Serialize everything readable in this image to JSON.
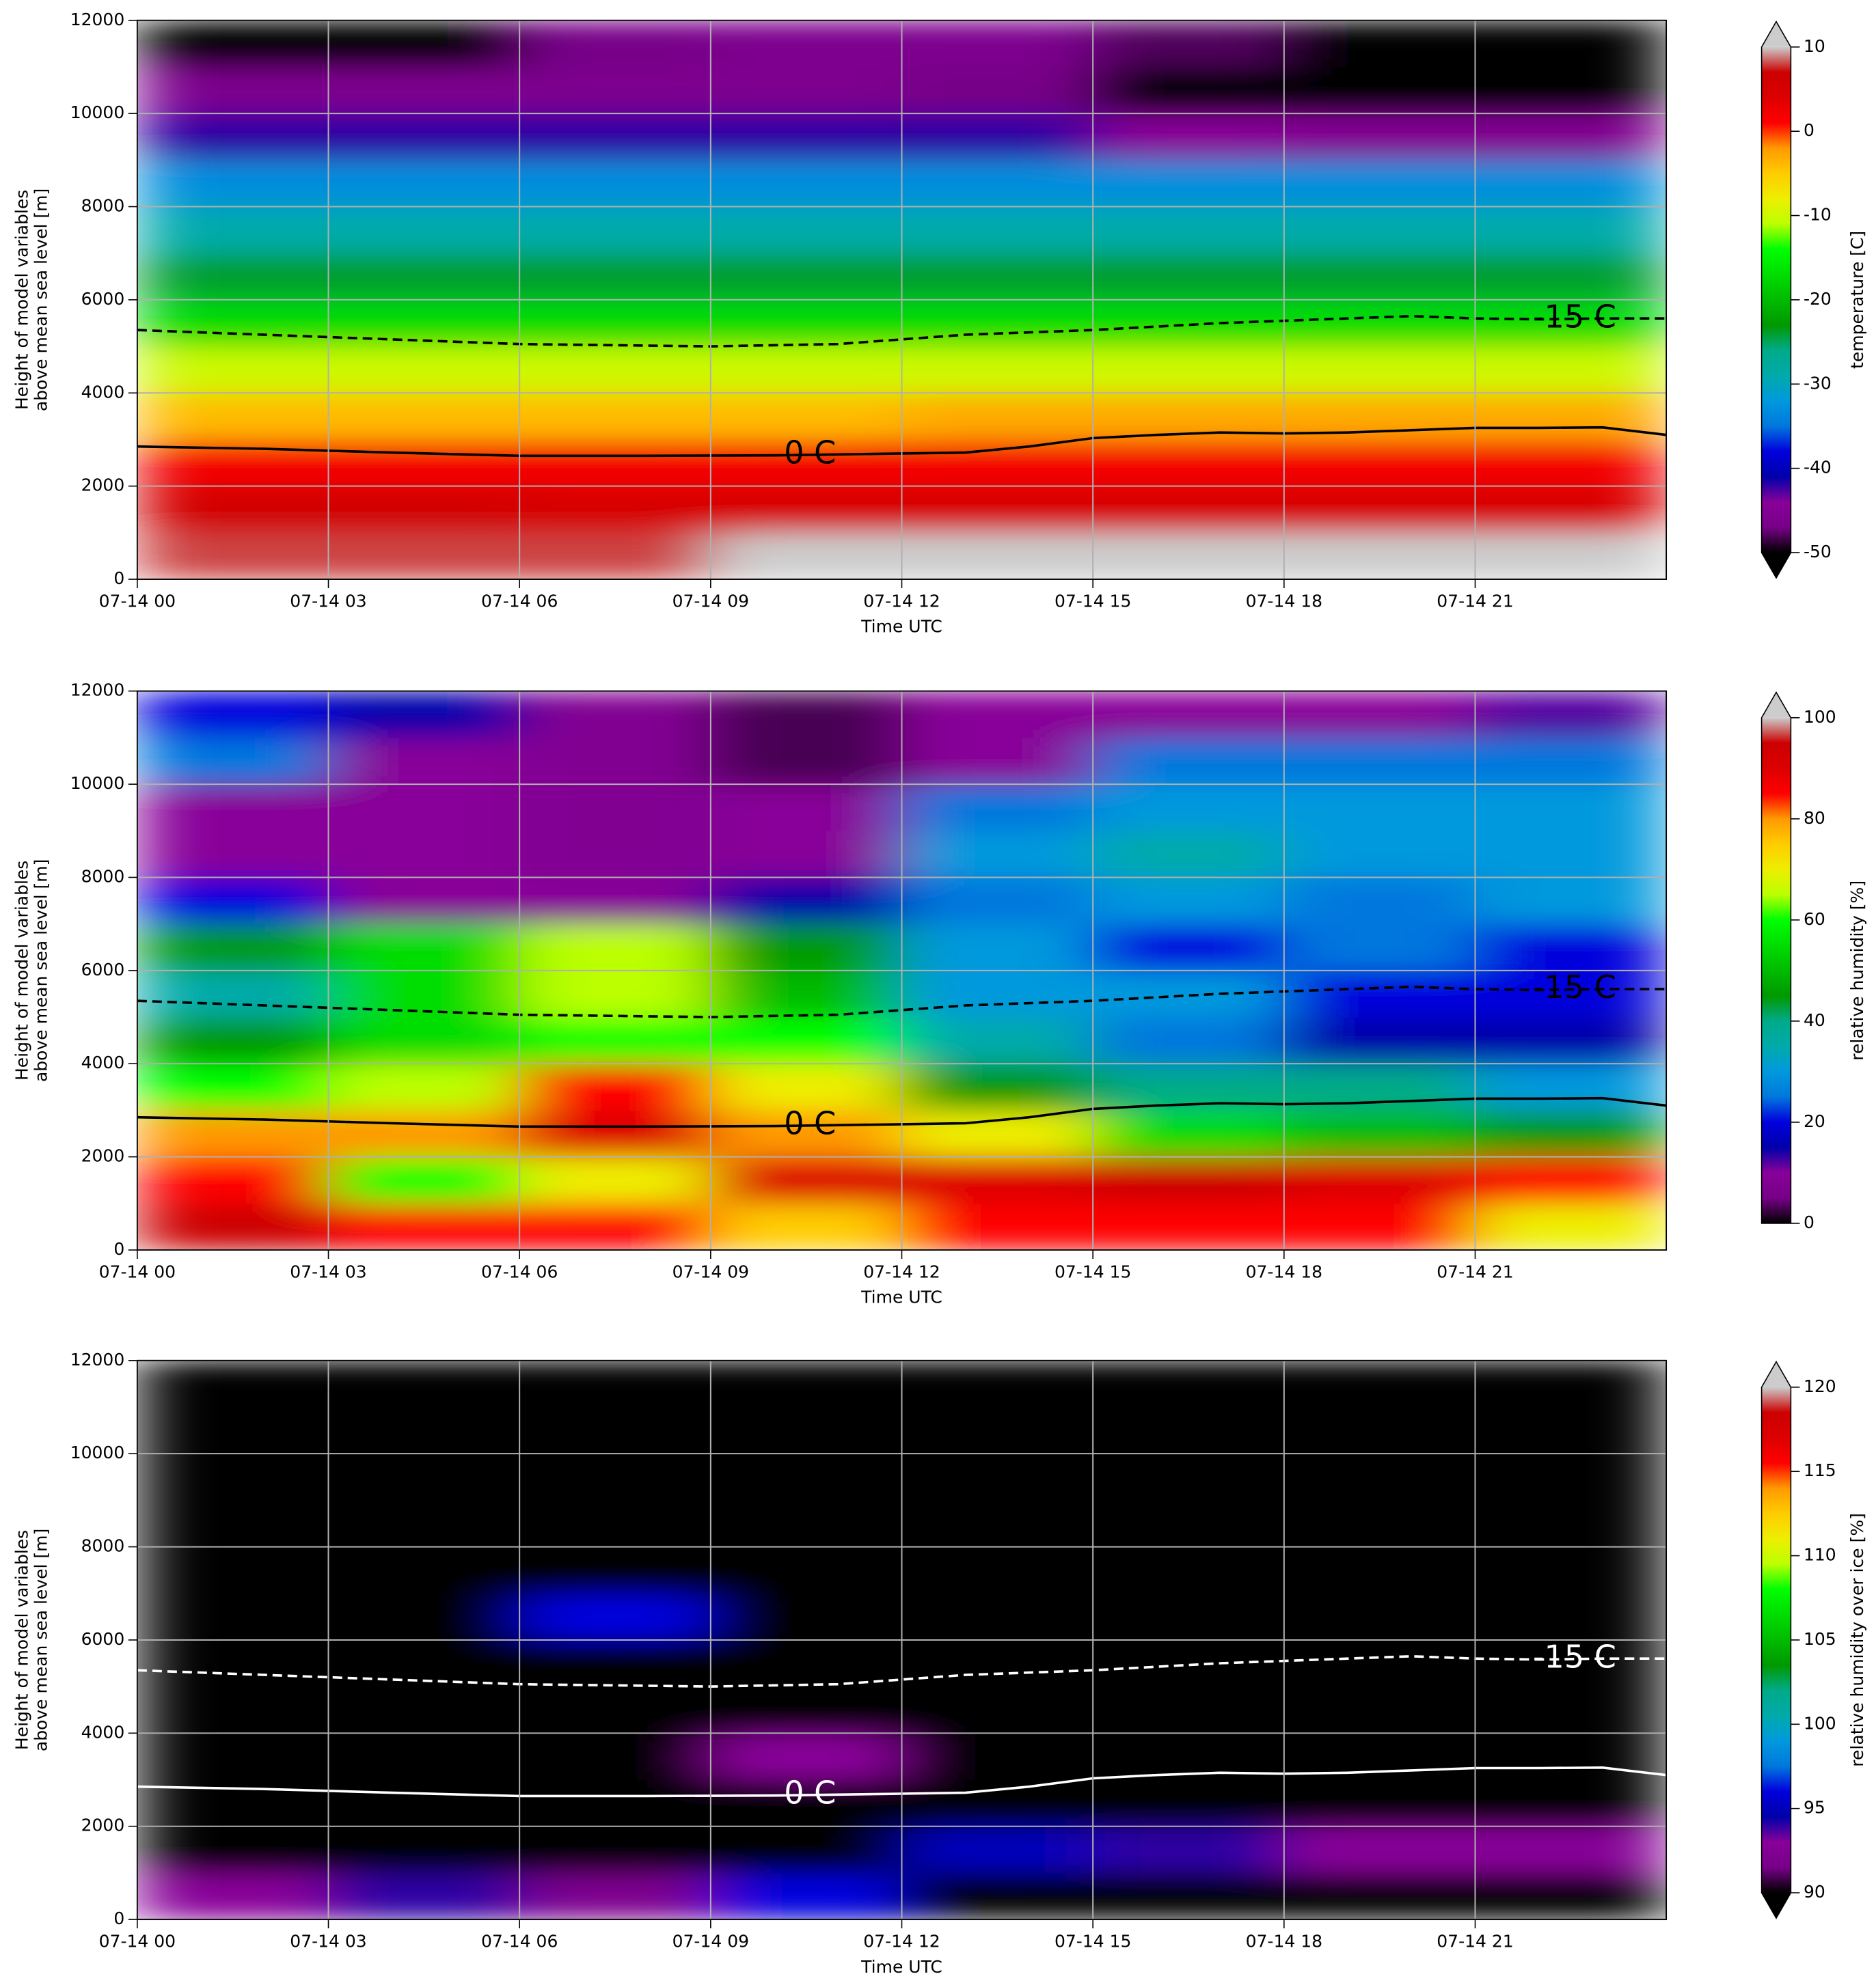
{
  "chart_data": [
    {
      "type": "heatmap",
      "ylabel": [
        "Height of model variables",
        "above mean sea level [m]"
      ],
      "xlabel": "Time UTC",
      "xlim": [
        0,
        24
      ],
      "xticks": [
        {
          "value": 0,
          "label": "07-14 00"
        },
        {
          "value": 3,
          "label": "07-14 03"
        },
        {
          "value": 6,
          "label": "07-14 06"
        },
        {
          "value": 9,
          "label": "07-14 09"
        },
        {
          "value": 12,
          "label": "07-14 12"
        },
        {
          "value": 15,
          "label": "07-14 15"
        },
        {
          "value": 18,
          "label": "07-14 18"
        },
        {
          "value": 21,
          "label": "07-14 21"
        }
      ],
      "ylim": [
        0,
        12000
      ],
      "yticks": [
        0,
        2000,
        4000,
        6000,
        8000,
        10000,
        12000
      ],
      "grid": true,
      "x": [
        1.5,
        4.5,
        7.5,
        10.5,
        13.5,
        16.5,
        19.5,
        22.5
      ],
      "y": [
        500,
        1500,
        2500,
        3500,
        4500,
        5500,
        6500,
        7500,
        8500,
        9500,
        10500,
        11500
      ],
      "z": [
        [
          8,
          8,
          8,
          10,
          12,
          12,
          12,
          12
        ],
        [
          6,
          6,
          5,
          5,
          5,
          5,
          5,
          5
        ],
        [
          2,
          2,
          2,
          2,
          2,
          2,
          2,
          2
        ],
        [
          -4,
          -4,
          -4,
          -4,
          -3,
          -3,
          -3,
          -3
        ],
        [
          -10,
          -10,
          -10,
          -10,
          -10,
          -10,
          -10,
          -10
        ],
        [
          -17,
          -17,
          -17,
          -17,
          -17,
          -17,
          -17,
          -17
        ],
        [
          -24,
          -24,
          -24,
          -24,
          -24,
          -24,
          -24,
          -24
        ],
        [
          -29,
          -29,
          -29,
          -29,
          -29,
          -29,
          -29,
          -29
        ],
        [
          -33,
          -33,
          -33,
          -33,
          -33,
          -33,
          -33,
          -33
        ],
        [
          -42,
          -42,
          -42,
          -42,
          -42,
          -44,
          -45,
          -45
        ],
        [
          -46,
          -46,
          -46,
          -46,
          -47,
          -50,
          -50,
          -50
        ],
        [
          -50,
          -50,
          -47,
          -46,
          -46,
          -48,
          -50,
          -50
        ]
      ],
      "colorbar": {
        "label": "temperature [C]",
        "lim": [
          -50,
          10
        ],
        "ticks": [
          -50,
          -40,
          -30,
          -20,
          -10,
          0,
          10
        ],
        "extend": "both",
        "cmap": [
          "#000000",
          "#770088",
          "#880099",
          "#0000aa",
          "#0000dd",
          "#0077dd",
          "#0099dd",
          "#00aaaa",
          "#00aa88",
          "#009900",
          "#00bb00",
          "#00dd00",
          "#00ff00",
          "#bbff00",
          "#eeee00",
          "#ffcc00",
          "#ff9900",
          "#ff0000",
          "#dd0000",
          "#cc0000",
          "#cccccc"
        ]
      },
      "contours": [
        {
          "label": "0 C",
          "style": "solid",
          "color": "#000000",
          "x": [
            0,
            2,
            4,
            6,
            8,
            10,
            12,
            13,
            14,
            15,
            16,
            17,
            18,
            19,
            20,
            21,
            22,
            23,
            24
          ],
          "y": [
            2850,
            2800,
            2720,
            2650,
            2650,
            2660,
            2700,
            2720,
            2850,
            3030,
            3100,
            3150,
            3130,
            3150,
            3200,
            3250,
            3250,
            3260,
            3100
          ]
        },
        {
          "label": "-15 C",
          "style": "dashed",
          "color": "#000000",
          "x": [
            0,
            3,
            6,
            9,
            11,
            13,
            15,
            17,
            19,
            20,
            21,
            22,
            23,
            24
          ],
          "y": [
            5350,
            5200,
            5050,
            5000,
            5050,
            5250,
            5350,
            5500,
            5600,
            5650,
            5600,
            5580,
            5600,
            5600
          ]
        }
      ]
    },
    {
      "type": "heatmap",
      "ylabel": [
        "Height of model variables",
        "above mean sea level [m]"
      ],
      "xlabel": "Time UTC",
      "xlim": [
        0,
        24
      ],
      "xticks": [
        {
          "value": 0,
          "label": "07-14 00"
        },
        {
          "value": 3,
          "label": "07-14 03"
        },
        {
          "value": 6,
          "label": "07-14 06"
        },
        {
          "value": 9,
          "label": "07-14 09"
        },
        {
          "value": 12,
          "label": "07-14 12"
        },
        {
          "value": 15,
          "label": "07-14 15"
        },
        {
          "value": 18,
          "label": "07-14 18"
        },
        {
          "value": 21,
          "label": "07-14 21"
        }
      ],
      "ylim": [
        0,
        12000
      ],
      "yticks": [
        0,
        2000,
        4000,
        6000,
        8000,
        10000,
        12000
      ],
      "grid": true,
      "x": [
        1.5,
        4.5,
        7.5,
        10.5,
        13.5,
        16.5,
        19.5,
        22.5
      ],
      "y": [
        500,
        1500,
        2500,
        3500,
        4500,
        5500,
        6500,
        7500,
        8500,
        9500,
        10500,
        11500
      ],
      "z": [
        [
          95,
          85,
          85,
          75,
          85,
          85,
          85,
          70
        ],
        [
          85,
          60,
          70,
          90,
          90,
          95,
          90,
          85
        ],
        [
          80,
          80,
          90,
          80,
          70,
          55,
          50,
          45
        ],
        [
          60,
          65,
          85,
          70,
          45,
          40,
          40,
          30
        ],
        [
          45,
          55,
          60,
          60,
          35,
          25,
          15,
          15
        ],
        [
          35,
          55,
          65,
          50,
          30,
          30,
          20,
          20
        ],
        [
          45,
          55,
          65,
          45,
          30,
          20,
          25,
          20
        ],
        [
          20,
          10,
          10,
          15,
          25,
          30,
          25,
          30
        ],
        [
          10,
          10,
          8,
          10,
          30,
          35,
          30,
          30
        ],
        [
          10,
          10,
          8,
          10,
          25,
          30,
          30,
          30
        ],
        [
          25,
          10,
          8,
          3,
          10,
          25,
          25,
          25
        ],
        [
          20,
          15,
          8,
          3,
          10,
          10,
          10,
          12
        ]
      ],
      "colorbar": {
        "label": "relative humidity [%]",
        "lim": [
          0,
          100
        ],
        "ticks": [
          0,
          20,
          40,
          60,
          80,
          100
        ],
        "extend": "max",
        "cmap": [
          "#000000",
          "#770088",
          "#880099",
          "#0000aa",
          "#0000dd",
          "#0077dd",
          "#0099dd",
          "#00aaaa",
          "#00aa88",
          "#009900",
          "#00bb00",
          "#00dd00",
          "#00ff00",
          "#bbff00",
          "#eeee00",
          "#ffcc00",
          "#ff9900",
          "#ff0000",
          "#dd0000",
          "#cc0000",
          "#cccccc"
        ]
      },
      "contours": [
        {
          "label": "0 C",
          "style": "solid",
          "color": "#000000",
          "x": [
            0,
            2,
            4,
            6,
            8,
            10,
            12,
            13,
            14,
            15,
            16,
            17,
            18,
            19,
            20,
            21,
            22,
            23,
            24
          ],
          "y": [
            2850,
            2800,
            2720,
            2650,
            2650,
            2660,
            2700,
            2720,
            2850,
            3030,
            3100,
            3150,
            3130,
            3150,
            3200,
            3250,
            3250,
            3260,
            3100
          ]
        },
        {
          "label": "-15 C",
          "style": "dashed",
          "color": "#000000",
          "x": [
            0,
            3,
            6,
            9,
            11,
            13,
            15,
            17,
            19,
            20,
            21,
            22,
            23,
            24
          ],
          "y": [
            5350,
            5200,
            5050,
            5000,
            5050,
            5250,
            5350,
            5500,
            5600,
            5650,
            5600,
            5580,
            5600,
            5600
          ]
        }
      ]
    },
    {
      "type": "heatmap",
      "ylabel": [
        "Height of model variables",
        "above mean sea level [m]"
      ],
      "xlabel": "Time UTC",
      "xlim": [
        0,
        24
      ],
      "xticks": [
        {
          "value": 0,
          "label": "07-14 00"
        },
        {
          "value": 3,
          "label": "07-14 03"
        },
        {
          "value": 6,
          "label": "07-14 06"
        },
        {
          "value": 9,
          "label": "07-14 09"
        },
        {
          "value": 12,
          "label": "07-14 12"
        },
        {
          "value": 15,
          "label": "07-14 15"
        },
        {
          "value": 18,
          "label": "07-14 18"
        },
        {
          "value": 21,
          "label": "07-14 21"
        }
      ],
      "ylim": [
        0,
        12000
      ],
      "yticks": [
        0,
        2000,
        4000,
        6000,
        8000,
        10000,
        12000
      ],
      "grid": true,
      "x": [
        1.5,
        4.5,
        7.5,
        10.5,
        13.5,
        16.5,
        19.5,
        22.5
      ],
      "y": [
        500,
        1500,
        2500,
        3500,
        4500,
        5500,
        6500,
        7500,
        8500,
        9500,
        10500,
        11500
      ],
      "z": [
        [
          93,
          94,
          92,
          96,
          80,
          80,
          80,
          80
        ],
        [
          80,
          80,
          80,
          80,
          95,
          94,
          93,
          93
        ],
        [
          80,
          80,
          80,
          80,
          80,
          80,
          80,
          80
        ],
        [
          80,
          80,
          80,
          93,
          80,
          80,
          80,
          80
        ],
        [
          80,
          80,
          80,
          80,
          80,
          80,
          80,
          80
        ],
        [
          80,
          80,
          80,
          80,
          80,
          80,
          80,
          80
        ],
        [
          80,
          80,
          96,
          80,
          80,
          80,
          80,
          80
        ],
        [
          80,
          80,
          80,
          80,
          80,
          80,
          80,
          80
        ],
        [
          80,
          80,
          80,
          80,
          80,
          80,
          80,
          80
        ],
        [
          80,
          80,
          80,
          80,
          80,
          80,
          80,
          80
        ],
        [
          80,
          80,
          80,
          80,
          80,
          80,
          80,
          80
        ],
        [
          80,
          80,
          80,
          80,
          80,
          80,
          80,
          80
        ]
      ],
      "colorbar": {
        "label": "relative humidity over ice [%]",
        "lim": [
          90,
          120
        ],
        "ticks": [
          90,
          95,
          100,
          105,
          110,
          115,
          120
        ],
        "extend": "both",
        "cmap": [
          "#000000",
          "#770088",
          "#880099",
          "#0000aa",
          "#0000dd",
          "#0077dd",
          "#0099dd",
          "#00aaaa",
          "#00aa88",
          "#009900",
          "#00bb00",
          "#00dd00",
          "#00ff00",
          "#bbff00",
          "#eeee00",
          "#ffcc00",
          "#ff9900",
          "#ff0000",
          "#dd0000",
          "#cc0000",
          "#cccccc"
        ]
      },
      "contours": [
        {
          "label": "0 C",
          "style": "solid",
          "color": "#ffffff",
          "x": [
            0,
            2,
            4,
            6,
            8,
            10,
            12,
            13,
            14,
            15,
            16,
            17,
            18,
            19,
            20,
            21,
            22,
            23,
            24
          ],
          "y": [
            2850,
            2800,
            2720,
            2650,
            2650,
            2660,
            2700,
            2720,
            2850,
            3030,
            3100,
            3150,
            3130,
            3150,
            3200,
            3250,
            3250,
            3260,
            3100
          ]
        },
        {
          "label": "-15 C",
          "style": "dashed",
          "color": "#ffffff",
          "x": [
            0,
            3,
            6,
            9,
            11,
            13,
            15,
            17,
            19,
            20,
            21,
            22,
            23,
            24
          ],
          "y": [
            5350,
            5200,
            5050,
            5000,
            5050,
            5250,
            5350,
            5500,
            5600,
            5650,
            5600,
            5580,
            5600,
            5600
          ]
        }
      ]
    }
  ]
}
